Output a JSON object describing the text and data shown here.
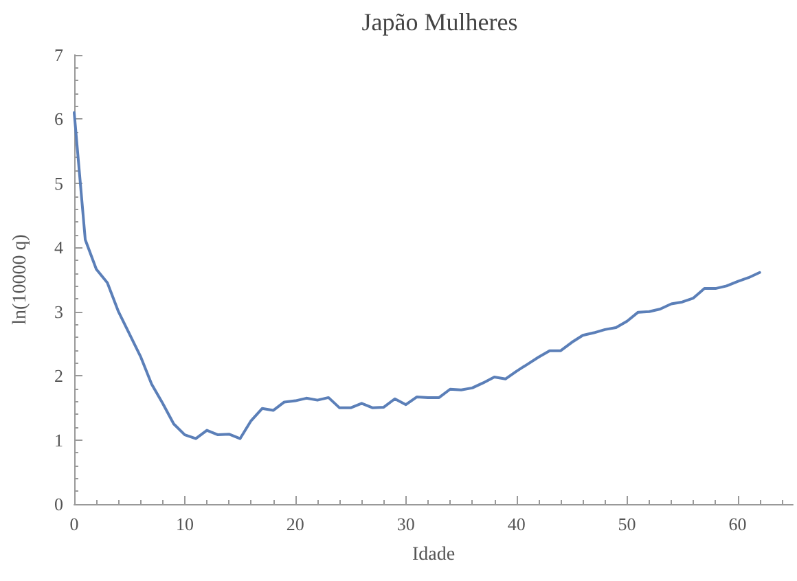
{
  "chart_data": {
    "type": "line",
    "title": "Japão Mulheres",
    "xlabel": "Idade",
    "ylabel": "ln(10000 q)",
    "x": [
      0,
      1,
      2,
      3,
      4,
      5,
      6,
      7,
      8,
      9,
      10,
      11,
      12,
      13,
      14,
      15,
      16,
      17,
      18,
      19,
      20,
      21,
      22,
      23,
      24,
      25,
      26,
      27,
      28,
      29,
      30,
      31,
      32,
      33,
      34,
      35,
      36,
      37,
      38,
      39,
      40,
      41,
      42,
      43,
      44,
      45,
      46,
      47,
      48,
      49,
      50,
      51,
      52,
      53,
      54,
      55,
      56,
      57,
      58,
      59,
      60,
      61,
      62
    ],
    "series": [
      {
        "color": "#5b7fb8",
        "values": [
          6.1,
          4.12,
          3.66,
          3.45,
          3.0,
          2.65,
          2.3,
          1.87,
          1.57,
          1.25,
          1.08,
          1.02,
          1.15,
          1.08,
          1.09,
          1.02,
          1.3,
          1.49,
          1.46,
          1.59,
          1.61,
          1.65,
          1.62,
          1.66,
          1.5,
          1.5,
          1.57,
          1.5,
          1.51,
          1.64,
          1.55,
          1.67,
          1.66,
          1.66,
          1.79,
          1.78,
          1.81,
          1.89,
          1.98,
          1.95,
          2.07,
          2.18,
          2.29,
          2.39,
          2.39,
          2.52,
          2.63,
          2.67,
          2.72,
          2.75,
          2.85,
          2.99,
          3.0,
          3.04,
          3.12,
          3.15,
          3.21,
          3.36,
          3.36,
          3.4,
          3.47,
          3.53,
          3.61
        ]
      }
    ],
    "xlim": [
      0,
      65
    ],
    "xticks": [
      0,
      10,
      20,
      30,
      40,
      50,
      60
    ],
    "ylim": [
      0,
      7
    ],
    "yticks": [
      0,
      1,
      2,
      3,
      4,
      5,
      6,
      7
    ],
    "grid": false,
    "marker": "none",
    "line_style": "solid"
  }
}
